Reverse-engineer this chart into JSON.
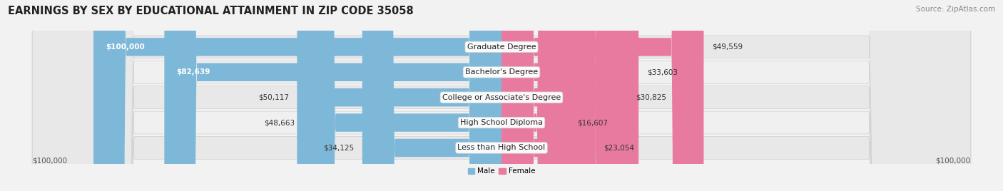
{
  "title": "EARNINGS BY SEX BY EDUCATIONAL ATTAINMENT IN ZIP CODE 35058",
  "source": "Source: ZipAtlas.com",
  "categories": [
    "Less than High School",
    "High School Diploma",
    "College or Associate's Degree",
    "Bachelor's Degree",
    "Graduate Degree"
  ],
  "male_values": [
    34125,
    48663,
    50117,
    82639,
    100000
  ],
  "female_values": [
    23054,
    16607,
    30825,
    33603,
    49559
  ],
  "male_color": "#7eb8d9",
  "female_color": "#e87aa0",
  "max_value": 100000,
  "background_color": "#f2f2f2",
  "row_colors": [
    "#e8e8e8",
    "#f0f0f0",
    "#e8e8e8",
    "#f0f0f0",
    "#e8e8e8"
  ],
  "title_fontsize": 10.5,
  "label_fontsize": 8,
  "value_fontsize": 7.5,
  "source_fontsize": 7.5
}
